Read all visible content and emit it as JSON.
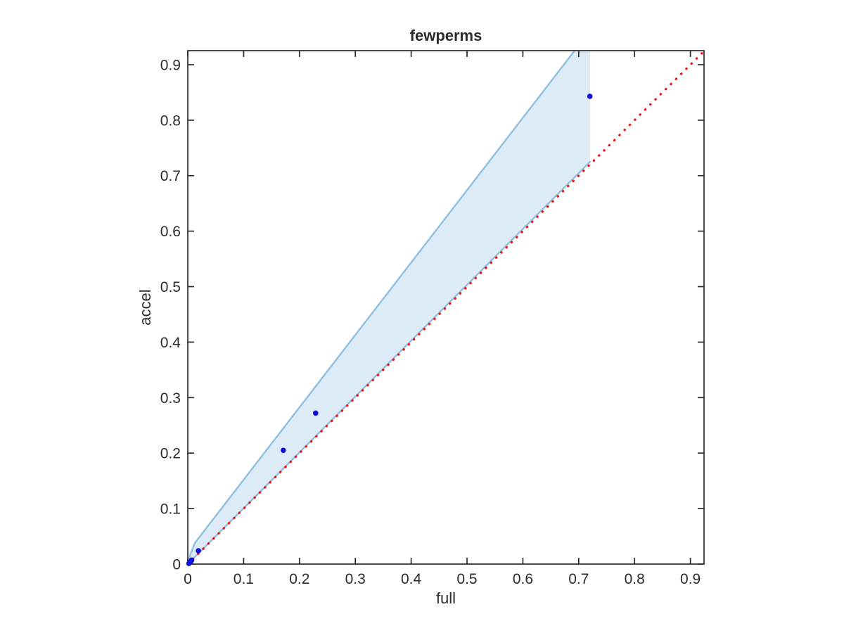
{
  "figure": {
    "background": "#ffffff"
  },
  "chart_data": {
    "type": "scatter",
    "title": "fewperms",
    "xlabel": "full",
    "ylabel": "accel",
    "xlim": [
      0,
      0.9244
    ],
    "ylim": [
      0,
      0.9253
    ],
    "grid": false,
    "legend": null,
    "xticks": {
      "values": [
        0,
        0.1,
        0.2,
        0.3,
        0.4,
        0.5,
        0.6,
        0.7,
        0.8,
        0.9
      ],
      "labels": [
        "0",
        "0.1",
        "0.2",
        "0.3",
        "0.4",
        "0.5",
        "0.6",
        "0.7",
        "0.8",
        "0.9"
      ]
    },
    "yticks": {
      "values": [
        0,
        0.1,
        0.2,
        0.3,
        0.4,
        0.5,
        0.6,
        0.7,
        0.8,
        0.9
      ],
      "labels": [
        "0",
        "0.1",
        "0.2",
        "0.3",
        "0.4",
        "0.5",
        "0.6",
        "0.7",
        "0.8",
        "0.9"
      ]
    },
    "axis": {
      "color": "#2b2b2b",
      "line_width": 1.7,
      "tick_length": 9
    },
    "points": [
      [
        0.002,
        0.001
      ],
      [
        0.005,
        0.004
      ],
      [
        0.007,
        0.007
      ],
      [
        0.019,
        0.024
      ],
      [
        0.171,
        0.205
      ],
      [
        0.229,
        0.272
      ],
      [
        0.72,
        0.843
      ]
    ],
    "marker": {
      "shape": "circle",
      "color": "#1111dd",
      "radius": 3.8
    },
    "identity_line": {
      "style": "dotted",
      "color": "#f01414",
      "width": 3.2,
      "from": [
        0,
        0
      ],
      "to": [
        0.9244,
        0.9244
      ]
    },
    "band": {
      "fill": "#dcebf6",
      "edge_color": "#8ebfe0",
      "edge_width": 2.4,
      "lower_edge": [
        [
          0,
          0
        ],
        [
          0.7204,
          0.7251
        ]
      ],
      "upper_edge": [
        [
          0,
          0
        ],
        [
          0.0038,
          0.0152
        ],
        [
          0.0126,
          0.038
        ],
        [
          0.6927,
          0.9253
        ]
      ],
      "polygon": [
        [
          0,
          0
        ],
        [
          0.7204,
          0.7251
        ],
        [
          0.7204,
          0.9253
        ],
        [
          0.6927,
          0.9253
        ],
        [
          0.0126,
          0.038
        ],
        [
          0.0038,
          0.0152
        ]
      ]
    }
  }
}
